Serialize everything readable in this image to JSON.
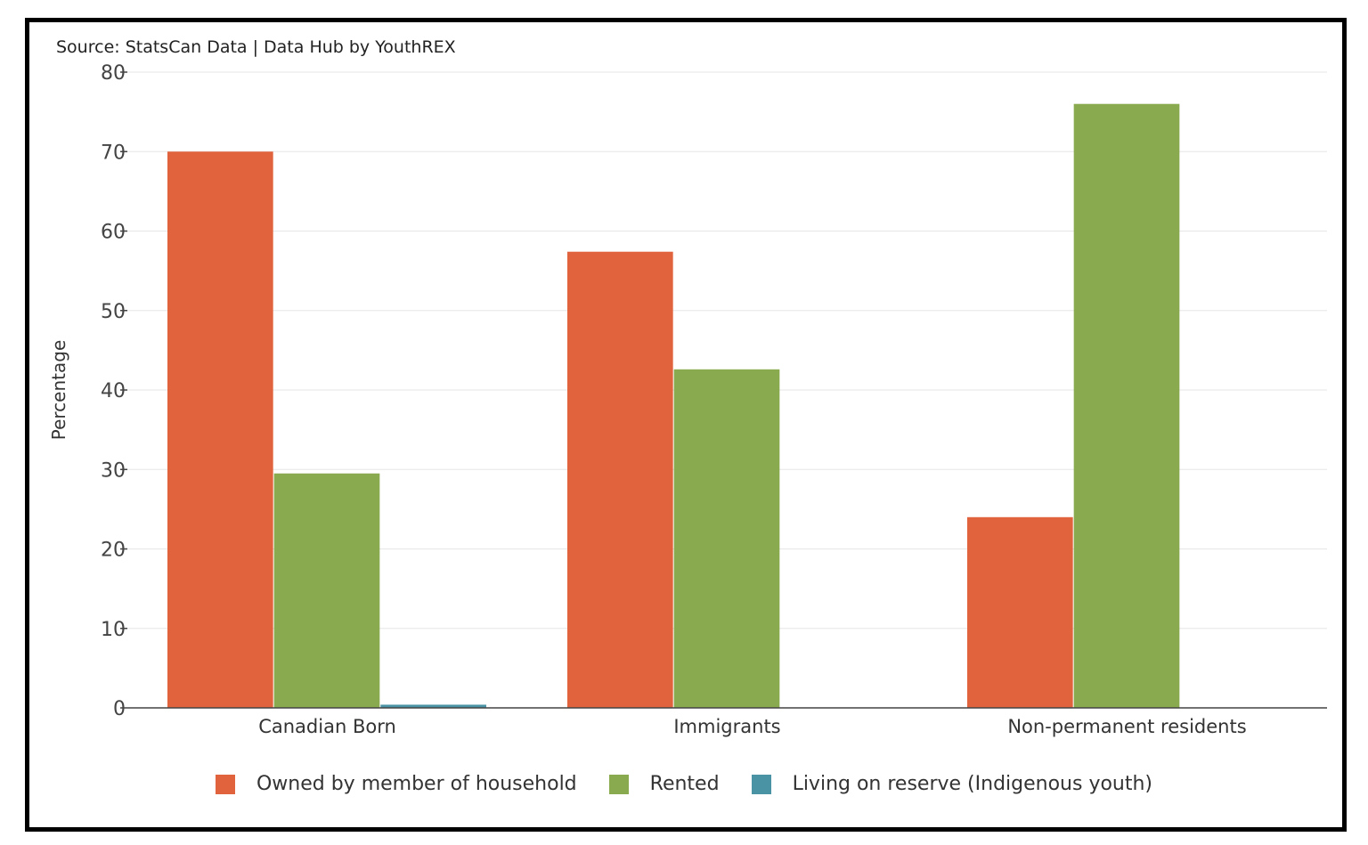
{
  "source": "Source: StatsCan Data | Data Hub by YouthREX",
  "colors": {
    "owned": "#E0633D",
    "rented": "#8AAA4F",
    "reserve": "#4A93A4",
    "grid": "#e6e6e6",
    "axis": "#444444"
  },
  "chart_data": {
    "type": "bar",
    "categories": [
      "Canadian Born",
      "Immigrants",
      "Non-permanent residents"
    ],
    "series": [
      {
        "name": "Owned by member of household",
        "values": [
          70,
          57.4,
          24
        ]
      },
      {
        "name": "Rented",
        "values": [
          29.5,
          42.6,
          76
        ]
      },
      {
        "name": "Living on reserve (Indigenous youth)",
        "values": [
          0.4,
          0,
          0
        ]
      }
    ],
    "ylabel": "Percentage",
    "xlabel": "",
    "ylim": [
      0,
      80
    ],
    "yticks": [
      0,
      10,
      20,
      30,
      40,
      50,
      60,
      70,
      80
    ],
    "grid": true,
    "legend": "bottom"
  }
}
